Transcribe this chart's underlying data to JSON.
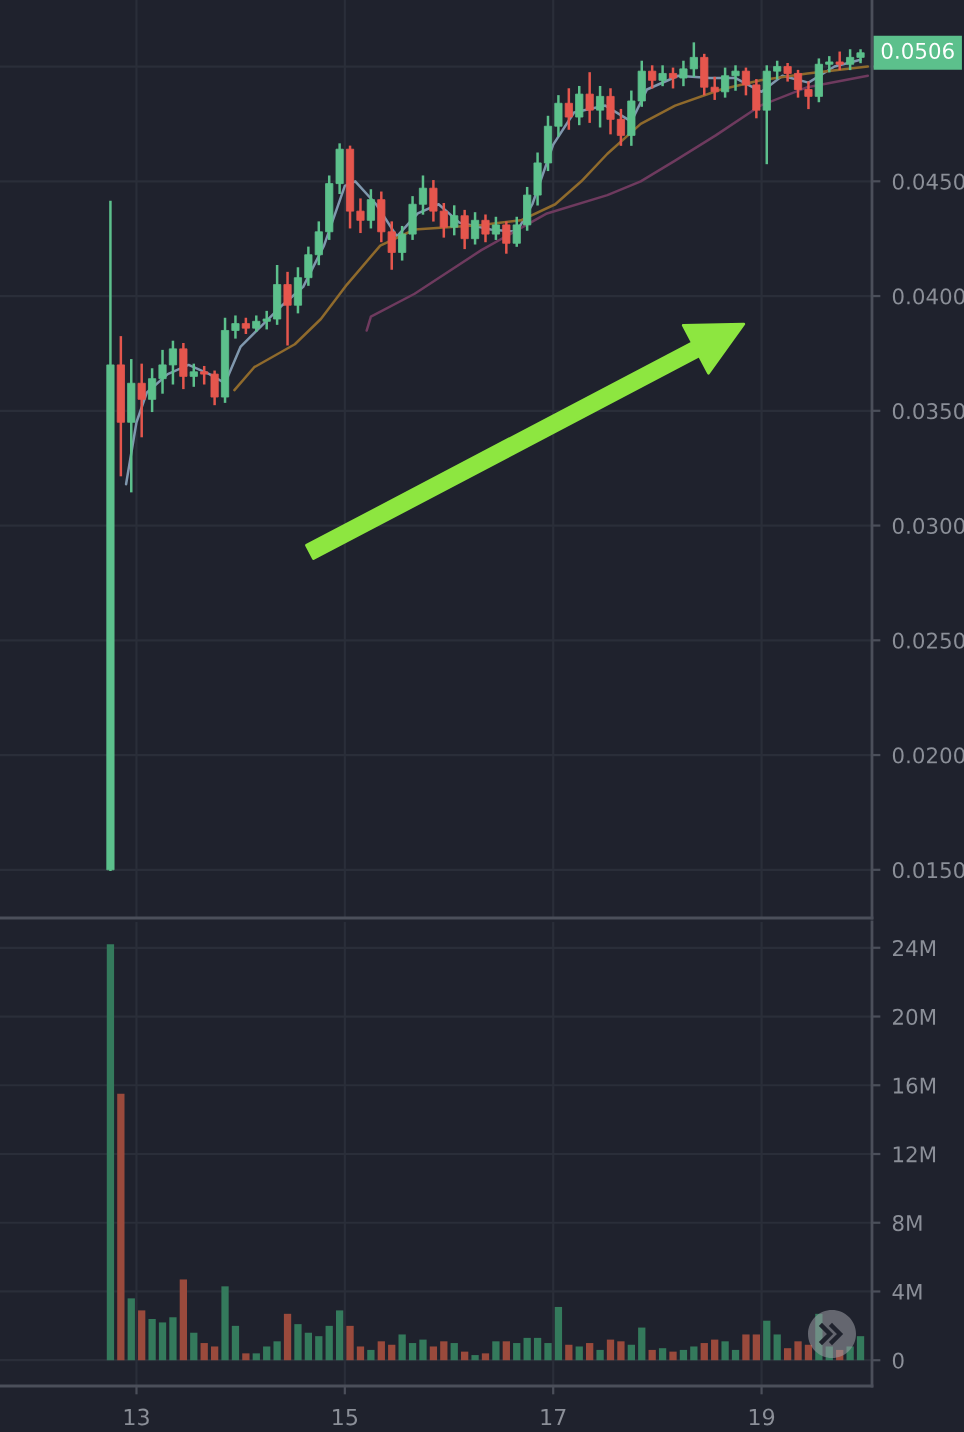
{
  "chart_data": [
    {
      "type": "candlestick",
      "x": [
        12.75,
        12.85,
        12.95,
        13.05,
        13.15,
        13.25,
        13.35,
        13.45,
        13.55,
        13.65,
        13.75,
        13.85,
        13.95,
        14.05,
        14.15,
        14.25,
        14.35,
        14.45,
        14.55,
        14.65,
        14.75,
        14.85,
        14.95,
        15.05,
        15.15,
        15.25,
        15.35,
        15.45,
        15.55,
        15.65,
        15.75,
        15.85,
        15.95,
        16.05,
        16.15,
        16.25,
        16.35,
        16.45,
        16.55,
        16.65,
        16.75,
        16.85,
        16.95,
        17.05,
        17.15,
        17.25,
        17.35,
        17.45,
        17.55,
        17.65,
        17.75,
        17.85,
        17.95,
        18.05,
        18.15,
        18.25,
        18.35,
        18.45,
        18.55,
        18.65,
        18.75,
        18.85,
        18.95,
        19.05,
        19.15,
        19.25,
        19.35,
        19.45,
        19.55,
        19.65,
        19.75,
        19.85,
        19.95
      ],
      "ohlc": [
        [
          0.015,
          0.0441,
          0.015,
          0.037
        ],
        [
          0.037,
          0.0382,
          0.0322,
          0.0345
        ],
        [
          0.0345,
          0.0372,
          0.0315,
          0.0362
        ],
        [
          0.0362,
          0.037,
          0.0339,
          0.0355
        ],
        [
          0.0355,
          0.0368,
          0.035,
          0.0364
        ],
        [
          0.0364,
          0.0376,
          0.0358,
          0.037
        ],
        [
          0.037,
          0.038,
          0.0362,
          0.0377
        ],
        [
          0.0377,
          0.0379,
          0.036,
          0.0365
        ],
        [
          0.0365,
          0.037,
          0.0361,
          0.0367
        ],
        [
          0.0367,
          0.0369,
          0.0362,
          0.0366
        ],
        [
          0.0366,
          0.0367,
          0.0353,
          0.0356
        ],
        [
          0.0356,
          0.039,
          0.0354,
          0.0385
        ],
        [
          0.0385,
          0.0391,
          0.0382,
          0.0388
        ],
        [
          0.0388,
          0.039,
          0.0384,
          0.0386
        ],
        [
          0.0386,
          0.0391,
          0.0385,
          0.0389
        ],
        [
          0.0389,
          0.0393,
          0.0386,
          0.039
        ],
        [
          0.039,
          0.0413,
          0.0388,
          0.0405
        ],
        [
          0.0405,
          0.041,
          0.0379,
          0.0396
        ],
        [
          0.0396,
          0.0412,
          0.0393,
          0.0408
        ],
        [
          0.0408,
          0.0421,
          0.0405,
          0.0418
        ],
        [
          0.0418,
          0.0432,
          0.0414,
          0.0428
        ],
        [
          0.0428,
          0.0452,
          0.0425,
          0.0449
        ],
        [
          0.0449,
          0.0466,
          0.0445,
          0.0464
        ],
        [
          0.0464,
          0.0465,
          0.043,
          0.0437
        ],
        [
          0.0437,
          0.0442,
          0.0428,
          0.0433
        ],
        [
          0.0433,
          0.0446,
          0.043,
          0.0442
        ],
        [
          0.0442,
          0.0445,
          0.0424,
          0.0428
        ],
        [
          0.0428,
          0.0432,
          0.0412,
          0.0419
        ],
        [
          0.0419,
          0.043,
          0.0416,
          0.0427
        ],
        [
          0.0427,
          0.0443,
          0.0425,
          0.044
        ],
        [
          0.044,
          0.0452,
          0.0436,
          0.0447
        ],
        [
          0.0447,
          0.045,
          0.0433,
          0.0437
        ],
        [
          0.0437,
          0.044,
          0.0426,
          0.043
        ],
        [
          0.043,
          0.0439,
          0.0427,
          0.0435
        ],
        [
          0.0435,
          0.0437,
          0.0421,
          0.0425
        ],
        [
          0.0425,
          0.0436,
          0.0423,
          0.0433
        ],
        [
          0.0433,
          0.0435,
          0.0424,
          0.0427
        ],
        [
          0.0427,
          0.0434,
          0.0425,
          0.0431
        ],
        [
          0.0431,
          0.0432,
          0.0419,
          0.0423
        ],
        [
          0.0423,
          0.0434,
          0.0422,
          0.0431
        ],
        [
          0.0431,
          0.0447,
          0.0429,
          0.0444
        ],
        [
          0.0444,
          0.0462,
          0.044,
          0.0458
        ],
        [
          0.0458,
          0.0478,
          0.0455,
          0.0474
        ],
        [
          0.0474,
          0.0487,
          0.047,
          0.0484
        ],
        [
          0.0484,
          0.049,
          0.0473,
          0.0478
        ],
        [
          0.0478,
          0.0491,
          0.0475,
          0.0488
        ],
        [
          0.0488,
          0.0497,
          0.0476,
          0.0481
        ],
        [
          0.0481,
          0.0491,
          0.0474,
          0.0487
        ],
        [
          0.0487,
          0.049,
          0.0471,
          0.0477
        ],
        [
          0.0477,
          0.0481,
          0.0466,
          0.047
        ],
        [
          0.047,
          0.0489,
          0.0466,
          0.0485
        ],
        [
          0.0485,
          0.0502,
          0.0483,
          0.0498
        ],
        [
          0.0498,
          0.05,
          0.0491,
          0.0494
        ],
        [
          0.0494,
          0.05,
          0.0492,
          0.0497
        ],
        [
          0.0497,
          0.0499,
          0.0491,
          0.0495
        ],
        [
          0.0495,
          0.0502,
          0.0492,
          0.0499
        ],
        [
          0.0499,
          0.051,
          0.0496,
          0.0504
        ],
        [
          0.0504,
          0.0505,
          0.0488,
          0.0491
        ],
        [
          0.0491,
          0.0495,
          0.0486,
          0.0489
        ],
        [
          0.0489,
          0.0499,
          0.0487,
          0.0496
        ],
        [
          0.0496,
          0.05,
          0.049,
          0.0498
        ],
        [
          0.0498,
          0.0499,
          0.0488,
          0.0492
        ],
        [
          0.0492,
          0.0494,
          0.0478,
          0.0481
        ],
        [
          0.0481,
          0.05,
          0.0458,
          0.0498
        ],
        [
          0.0498,
          0.0502,
          0.0495,
          0.05
        ],
        [
          0.05,
          0.0501,
          0.0494,
          0.0497
        ],
        [
          0.0497,
          0.0498,
          0.0487,
          0.049
        ],
        [
          0.049,
          0.0493,
          0.0482,
          0.0487
        ],
        [
          0.0487,
          0.0503,
          0.0485,
          0.0501
        ],
        [
          0.0501,
          0.0504,
          0.0498,
          0.0502
        ],
        [
          0.0502,
          0.0506,
          0.0499,
          0.0501
        ],
        [
          0.0501,
          0.0507,
          0.0499,
          0.0504
        ],
        [
          0.0504,
          0.0507,
          0.0502,
          0.0506
        ]
      ],
      "colors": [
        "#5cc08c",
        "#e5564d",
        "#5cc08c",
        "#e5564d",
        "#5cc08c",
        "#5cc08c",
        "#5cc08c",
        "#e5564d",
        "#5cc08c",
        "#e5564d",
        "#e5564d",
        "#5cc08c",
        "#5cc08c",
        "#e5564d",
        "#5cc08c",
        "#5cc08c",
        "#5cc08c",
        "#e5564d",
        "#5cc08c",
        "#5cc08c",
        "#5cc08c",
        "#5cc08c",
        "#5cc08c",
        "#e5564d",
        "#e5564d",
        "#5cc08c",
        "#e5564d",
        "#e5564d",
        "#5cc08c",
        "#5cc08c",
        "#5cc08c",
        "#e5564d",
        "#e5564d",
        "#5cc08c",
        "#e5564d",
        "#5cc08c",
        "#e5564d",
        "#5cc08c",
        "#e5564d",
        "#5cc08c",
        "#5cc08c",
        "#5cc08c",
        "#5cc08c",
        "#5cc08c",
        "#e5564d",
        "#5cc08c",
        "#e5564d",
        "#5cc08c",
        "#e5564d",
        "#e5564d",
        "#5cc08c",
        "#5cc08c",
        "#e5564d",
        "#5cc08c",
        "#e5564d",
        "#5cc08c",
        "#5cc08c",
        "#e5564d",
        "#e5564d",
        "#5cc08c",
        "#5cc08c",
        "#e5564d",
        "#e5564d",
        "#5cc08c",
        "#5cc08c",
        "#e5564d",
        "#e5564d",
        "#e5564d",
        "#5cc08c",
        "#5cc08c",
        "#e5564d",
        "#5cc08c",
        "#5cc08c"
      ],
      "series": [
        {
          "type": "line",
          "color": "#7f97ad",
          "x": [
            12.9,
            13.0,
            13.1,
            13.3,
            13.5,
            13.7,
            13.85,
            14.0,
            14.2,
            14.4,
            14.6,
            14.8,
            15.0,
            15.1,
            15.3,
            15.5,
            15.7,
            15.9,
            16.1,
            16.4,
            16.65,
            16.8,
            17.0,
            17.2,
            17.5,
            17.75,
            17.9,
            18.2,
            18.5,
            18.75,
            19.0,
            19.2,
            19.45,
            19.7,
            19.95
          ],
          "values": [
            0.0318,
            0.0345,
            0.0358,
            0.0366,
            0.037,
            0.0366,
            0.0362,
            0.0378,
            0.0387,
            0.0396,
            0.0404,
            0.0422,
            0.0448,
            0.045,
            0.044,
            0.0426,
            0.0436,
            0.044,
            0.0432,
            0.0429,
            0.0428,
            0.044,
            0.0466,
            0.048,
            0.0483,
            0.0476,
            0.049,
            0.0496,
            0.0495,
            0.0495,
            0.0489,
            0.0496,
            0.0493,
            0.05,
            0.0503
          ]
        },
        {
          "type": "line",
          "color": "#8f6a2c",
          "x": [
            13.94,
            14.13,
            14.52,
            14.77,
            15.02,
            15.34,
            15.67,
            16.31,
            16.69,
            17.02,
            17.27,
            17.52,
            17.84,
            18.17,
            18.61,
            18.99,
            19.44,
            20.02
          ],
          "values": [
            0.0359,
            0.0369,
            0.0379,
            0.039,
            0.0405,
            0.0422,
            0.0429,
            0.0431,
            0.0433,
            0.044,
            0.045,
            0.0462,
            0.0475,
            0.0483,
            0.049,
            0.0494,
            0.0497,
            0.05
          ]
        },
        {
          "type": "line",
          "color": "#6e3a5e",
          "x": [
            15.21,
            15.25,
            15.67,
            16.31,
            16.94,
            17.52,
            17.84,
            18.17,
            18.56,
            18.99,
            19.44,
            20.02
          ],
          "values": [
            0.0385,
            0.0391,
            0.0401,
            0.042,
            0.0436,
            0.0444,
            0.045,
            0.0459,
            0.047,
            0.0483,
            0.0491,
            0.0496
          ]
        }
      ],
      "xlim": [
        11.69,
        20.06
      ],
      "xticks": [
        13,
        15,
        17,
        19
      ],
      "ylim": [
        0.0129,
        0.0529
      ],
      "yticks": [
        {
          "value": 0.015,
          "label": "0.0150"
        },
        {
          "value": 0.02,
          "label": "0.0200"
        },
        {
          "value": 0.025,
          "label": "0.0250"
        },
        {
          "value": 0.03,
          "label": "0.0300"
        },
        {
          "value": 0.035,
          "label": "0.0350"
        },
        {
          "value": 0.04,
          "label": "0.0400"
        },
        {
          "value": 0.045,
          "label": "0.0450"
        },
        {
          "value": 0.05,
          "label": null
        }
      ],
      "tick_labels": "y",
      "grid": true,
      "annotations": [
        {
          "text": "0.0506",
          "y": 0.0506
        }
      ]
    },
    {
      "type": "bar",
      "x": [
        12.75,
        12.85,
        12.95,
        13.05,
        13.15,
        13.25,
        13.35,
        13.45,
        13.55,
        13.65,
        13.75,
        13.85,
        13.95,
        14.05,
        14.15,
        14.25,
        14.35,
        14.45,
        14.55,
        14.65,
        14.75,
        14.85,
        14.95,
        15.05,
        15.15,
        15.25,
        15.35,
        15.45,
        15.55,
        15.65,
        15.75,
        15.85,
        15.95,
        16.05,
        16.15,
        16.25,
        16.35,
        16.45,
        16.55,
        16.65,
        16.75,
        16.85,
        16.95,
        17.05,
        17.15,
        17.25,
        17.35,
        17.45,
        17.55,
        17.65,
        17.75,
        17.85,
        17.95,
        18.05,
        18.15,
        18.25,
        18.35,
        18.45,
        18.55,
        18.65,
        18.75,
        18.85,
        18.95,
        19.05,
        19.15,
        19.25,
        19.35,
        19.45,
        19.55,
        19.65,
        19.75,
        19.85,
        19.95
      ],
      "values": [
        24200000,
        15500000,
        3600000,
        2900000,
        2400000,
        2200000,
        2500000,
        4700000,
        1600000,
        1000000,
        800000,
        4300000,
        2000000,
        400000,
        400000,
        800000,
        1100000,
        2700000,
        2100000,
        1600000,
        1400000,
        2000000,
        2900000,
        2000000,
        800000,
        600000,
        1100000,
        900000,
        1500000,
        1000000,
        1200000,
        800000,
        1100000,
        1000000,
        500000,
        300000,
        400000,
        1100000,
        1100000,
        1000000,
        1300000,
        1300000,
        1000000,
        3100000,
        900000,
        800000,
        1000000,
        600000,
        1200000,
        1100000,
        900000,
        1900000,
        600000,
        700000,
        500000,
        600000,
        800000,
        1000000,
        1200000,
        1100000,
        600000,
        1500000,
        1500000,
        2300000,
        1500000,
        700000,
        1100000,
        900000,
        2700000,
        800000,
        600000,
        800000,
        1400000
      ],
      "colors": [
        "#347a5c",
        "#9a4a3c",
        "#347a5c",
        "#9a4a3c",
        "#347a5c",
        "#347a5c",
        "#347a5c",
        "#9a4a3c",
        "#347a5c",
        "#9a4a3c",
        "#9a4a3c",
        "#347a5c",
        "#347a5c",
        "#9a4a3c",
        "#347a5c",
        "#347a5c",
        "#347a5c",
        "#9a4a3c",
        "#347a5c",
        "#347a5c",
        "#347a5c",
        "#347a5c",
        "#347a5c",
        "#9a4a3c",
        "#9a4a3c",
        "#347a5c",
        "#9a4a3c",
        "#9a4a3c",
        "#347a5c",
        "#347a5c",
        "#347a5c",
        "#9a4a3c",
        "#9a4a3c",
        "#347a5c",
        "#9a4a3c",
        "#347a5c",
        "#9a4a3c",
        "#347a5c",
        "#9a4a3c",
        "#347a5c",
        "#347a5c",
        "#347a5c",
        "#347a5c",
        "#347a5c",
        "#9a4a3c",
        "#347a5c",
        "#9a4a3c",
        "#347a5c",
        "#9a4a3c",
        "#9a4a3c",
        "#347a5c",
        "#347a5c",
        "#9a4a3c",
        "#347a5c",
        "#9a4a3c",
        "#347a5c",
        "#347a5c",
        "#9a4a3c",
        "#9a4a3c",
        "#347a5c",
        "#347a5c",
        "#9a4a3c",
        "#9a4a3c",
        "#347a5c",
        "#347a5c",
        "#9a4a3c",
        "#9a4a3c",
        "#9a4a3c",
        "#347a5c",
        "#347a5c",
        "#9a4a3c",
        "#347a5c",
        "#347a5c"
      ],
      "xlim": [
        11.69,
        20.06
      ],
      "xticks": [
        13,
        15,
        17,
        19
      ],
      "ylim": [
        -1500000,
        25500000
      ],
      "yticks": [
        0,
        {
          "value": 4000000,
          "label": "4M"
        },
        {
          "value": 8000000,
          "label": "8M"
        },
        {
          "value": 12000000,
          "label": "12M"
        },
        {
          "value": 16000000,
          "label": "16M"
        },
        {
          "value": 20000000,
          "label": "20M"
        },
        {
          "value": 24000000,
          "label": "24M"
        }
      ],
      "grid": true
    }
  ]
}
